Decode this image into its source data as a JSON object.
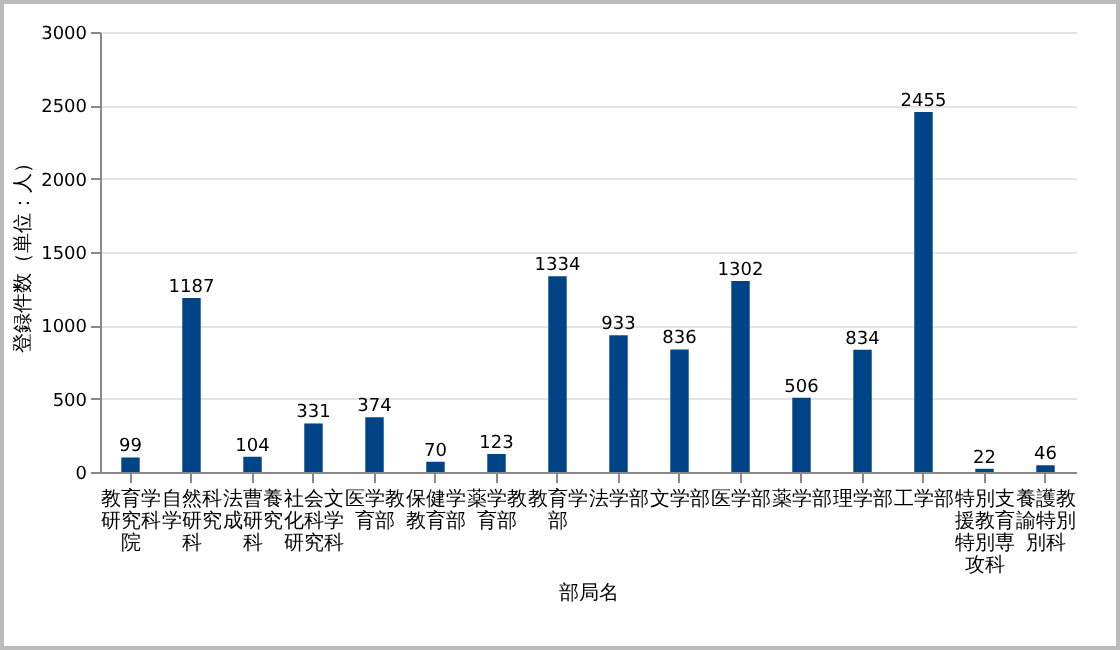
{
  "chart_data": {
    "type": "bar",
    "xlabel": "部局名",
    "ylabel": "登録件数（単位：人）",
    "categories": [
      "教育学研究科院",
      "自然科学研究科",
      "法曹養成研究科",
      "社会文化科学研究科",
      "医学教育部",
      "保健学教育部",
      "薬学教育部",
      "教育学部",
      "法学部",
      "文学部",
      "医学部",
      "薬学部",
      "理学部",
      "工学部",
      "特別支援教育特別専攻科",
      "養護教諭特別別科"
    ],
    "values": [
      99,
      1187,
      104,
      331,
      374,
      70,
      123,
      1334,
      933,
      836,
      1302,
      506,
      834,
      2455,
      22,
      46
    ],
    "color": "#004488",
    "ylim": [
      0,
      3000
    ],
    "yticks": [
      0,
      500,
      1000,
      1500,
      2000,
      2500,
      3000
    ],
    "grid": "y",
    "data_labels": true
  }
}
